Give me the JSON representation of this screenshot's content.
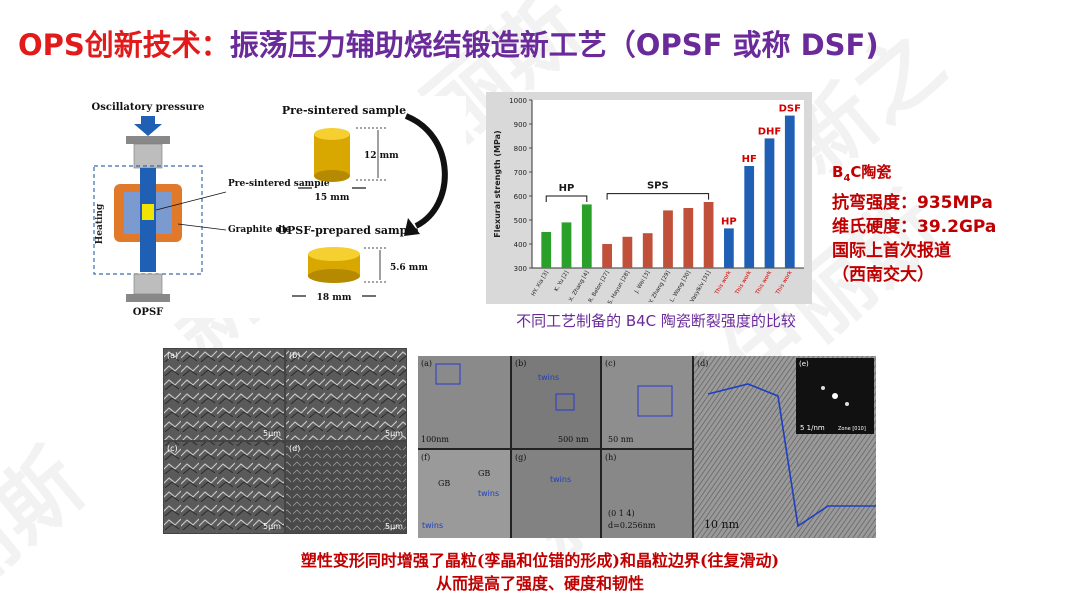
{
  "title": {
    "prefix": "OPS创新技术：",
    "main": "振荡压力辅助烧结锻造新工艺（OPSF 或称 DSF)"
  },
  "process_figure": {
    "oscillatory_pressure": "Oscillatory pressure",
    "heating": "Heating",
    "pre_sintered_sample_label": "Pre-sintered sample",
    "graphite_die": "Graphite die",
    "opsf": "OPSF",
    "top_sample_title": "Pre-sintered sample",
    "top_height": "12 mm",
    "top_width": "15 mm",
    "bottom_sample_title": "OPSF-prepared sample",
    "bottom_height": "5.6 mm",
    "bottom_width": "18 mm",
    "colors": {
      "die": "#e07a2a",
      "ram": "#1f5fb4",
      "sample": "#f2c200",
      "plate": "#9a9a9a"
    }
  },
  "chart_data": {
    "type": "bar",
    "ylabel": "Flexural strength (MPa)",
    "ylim": [
      300,
      1000
    ],
    "yticks": [
      300,
      400,
      500,
      600,
      700,
      800,
      900,
      1000
    ],
    "categories": [
      "HY. Xia [3]",
      "K. Yu [2]",
      "X. Zhang [4]",
      "R. Belon [27]",
      "S. Hayun [28]",
      "J. Wei [3]",
      "Y. Zhang [29]",
      "L. Wang [30]",
      "D. Vasylkiv [31]",
      "This work",
      "This work",
      "This work",
      "This work"
    ],
    "values": [
      450,
      490,
      565,
      400,
      430,
      445,
      540,
      550,
      575,
      465,
      725,
      840,
      935
    ],
    "bar_groups": [
      "HP",
      "HP",
      "HP",
      "SPS",
      "SPS",
      "SPS",
      "SPS",
      "SPS",
      "SPS",
      "HP",
      "HF",
      "DHF",
      "DSF"
    ],
    "group_labels": [
      {
        "text": "HP",
        "color": "#1a1a1a"
      },
      {
        "text": "SPS",
        "color": "#1a1a1a"
      },
      {
        "text": "HP",
        "color": "#d40000"
      },
      {
        "text": "HF",
        "color": "#d40000"
      },
      {
        "text": "DHF",
        "color": "#d40000"
      },
      {
        "text": "DSF",
        "color": "#d40000"
      }
    ],
    "colors": {
      "HP_prior": "#2aa02a",
      "SPS_prior": "#c0503a",
      "this_work": "#1f5fb4",
      "this_work_label": "#d40000"
    }
  },
  "chart_caption": "不同工艺制备的 B4C 陶瓷断裂强度的比较",
  "properties": {
    "material_prefix": "B",
    "material_sub": "4",
    "material_suffix": "C陶瓷",
    "flexural": "抗弯强度：935MPa",
    "hardness": "维氏硬度：39.2GPa",
    "first_report": "国际上首次报道",
    "institution": "（西南交大）"
  },
  "sem_panels": {
    "labels": [
      "(a)",
      "(b)",
      "(c)",
      "(d)"
    ],
    "scale": "5μm"
  },
  "tem_panels": {
    "labels": [
      "(a)",
      "(b)",
      "(c)",
      "(d)",
      "(e)",
      "(f)",
      "(g)",
      "(h)"
    ],
    "twins": "twins",
    "gb": "GB",
    "scale_a": "100nm",
    "scale_b": "500 nm",
    "scale_c": "50 nm",
    "scale_d": "10 nm",
    "scale_e": "5 1/nm",
    "d_spacing": "d=0.256nm",
    "plane": "(0 1 4)",
    "zone": "Zone [010]"
  },
  "bottom_note": {
    "line1": "塑性变形同时增强了晶粒(孪晶和位错的形成)和晶粒边界(往复滑动)",
    "line2": "从而提高了强度、硬度和韧性"
  },
  "watermark_text": "新 之 联 伊 丽 斯"
}
